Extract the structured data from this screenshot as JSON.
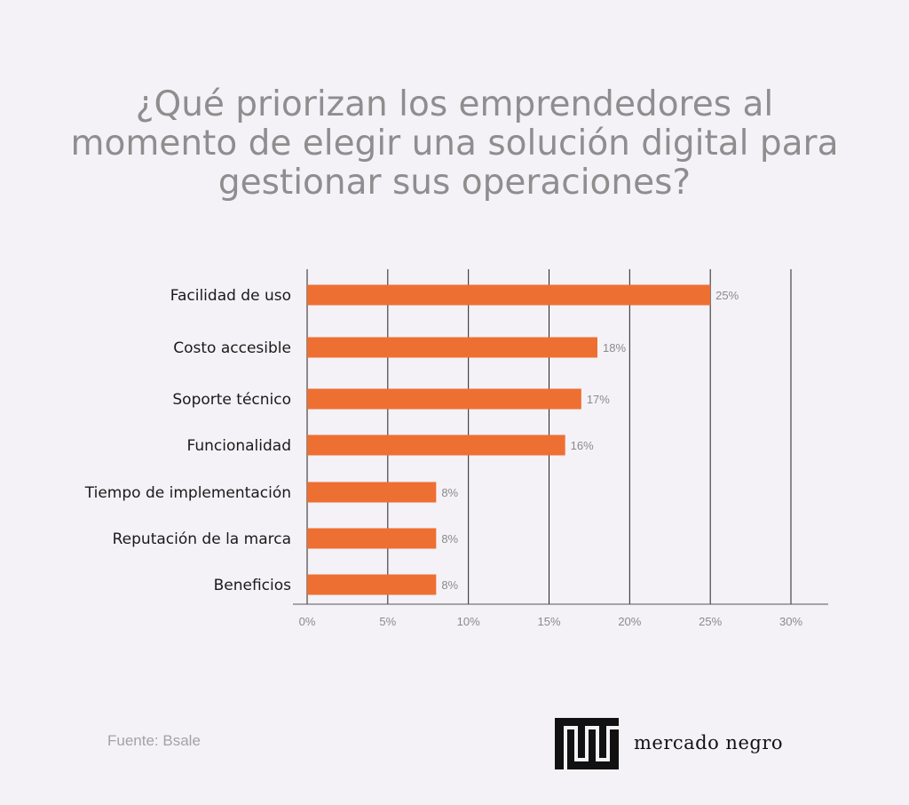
{
  "title_lines": [
    "¿Qué priorizan los emprendedores al",
    "momento de elegir una solución digital para",
    "gestionar sus operaciones?"
  ],
  "source": "Fuente: Bsale",
  "brand": {
    "name": "mercado negro",
    "logo_icon": "mn-block-logo"
  },
  "colors": {
    "bar": "#ee6f32",
    "background": "#f4f2f7",
    "title": "#8e8e8e",
    "gridline": "#222222"
  },
  "chart_data": {
    "type": "bar",
    "orientation": "horizontal",
    "title": "¿Qué priorizan los emprendedores al momento de elegir una solución digital para gestionar sus operaciones?",
    "categories": [
      "Facilidad de uso",
      "Costo accesible",
      "Soporte técnico",
      "Funcionalidad",
      "Tiempo de implementación",
      "Reputación de la marca",
      "Beneficios"
    ],
    "values": [
      25,
      18,
      17,
      16,
      8,
      8,
      8
    ],
    "data_labels": [
      "25%",
      "18%",
      "17%",
      "16%",
      "8%",
      "8%",
      "8%"
    ],
    "xlim": [
      0,
      30
    ],
    "xticks": [
      0,
      5,
      10,
      15,
      20,
      25,
      30
    ],
    "xtick_labels": [
      "0%",
      "5%",
      "10%",
      "15%",
      "20%",
      "25%",
      "30%"
    ],
    "grid": "vertical",
    "legend": "none"
  }
}
